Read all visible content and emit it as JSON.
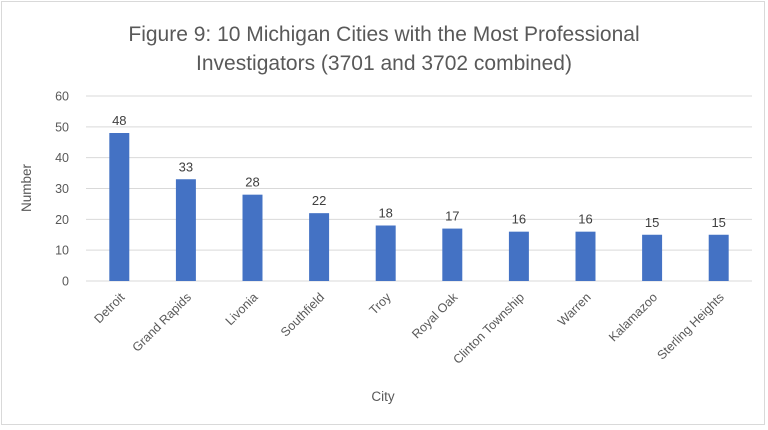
{
  "chart_data": {
    "type": "bar",
    "title_lines": [
      "Figure 9: 10 Michigan Cities with the Most Professional",
      "Investigators (3701 and 3702 combined)"
    ],
    "xlabel": "City",
    "ylabel": "Number",
    "categories": [
      "Detroit",
      "Grand Rapids",
      "Livonia",
      "Southfield",
      "Troy",
      "Royal Oak",
      "Clinton Township",
      "Warren",
      "Kalamazoo",
      "Sterling Heights"
    ],
    "values": [
      48,
      33,
      28,
      22,
      18,
      17,
      16,
      16,
      15,
      15
    ],
    "ylim": [
      0,
      60
    ],
    "yticks": [
      0,
      10,
      20,
      30,
      40,
      50,
      60
    ],
    "grid": true,
    "legend": "none",
    "bar_color": "#4472c4",
    "data_labels": true
  }
}
